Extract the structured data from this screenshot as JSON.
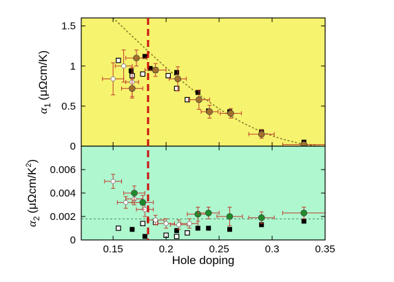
{
  "chart_data": [
    {
      "type": "scatter",
      "panel": "top",
      "ylabel_main": "α",
      "ylabel_sub": "1",
      "ylabel_unit": "(μΩcm/K)",
      "xlim": [
        0.12,
        0.35
      ],
      "ylim": [
        0,
        1.6
      ],
      "yticks": [
        "0",
        "0.5",
        "1",
        "1.5"
      ],
      "yticks_values": [
        0,
        0.5,
        1,
        1.5
      ],
      "background": "#f6f36e",
      "series": [
        {
          "marker": "filled-square",
          "color": "#000000",
          "points": [
            {
              "x": 0.167,
              "y": 0.94
            },
            {
              "x": 0.18,
              "y": 1.12
            },
            {
              "x": 0.185,
              "y": 0.97
            },
            {
              "x": 0.21,
              "y": 0.92
            },
            {
              "x": 0.23,
              "y": 0.67
            },
            {
              "x": 0.24,
              "y": 0.44
            },
            {
              "x": 0.26,
              "y": 0.43
            },
            {
              "x": 0.29,
              "y": 0.18
            },
            {
              "x": 0.33,
              "y": 0.05
            }
          ]
        },
        {
          "marker": "open-square",
          "color": "#000000",
          "points": [
            {
              "x": 0.155,
              "y": 1.07
            },
            {
              "x": 0.168,
              "y": 0.88
            },
            {
              "x": 0.178,
              "y": 0.9
            },
            {
              "x": 0.19,
              "y": 0.95
            },
            {
              "x": 0.202,
              "y": 0.88
            },
            {
              "x": 0.21,
              "y": 0.72
            },
            {
              "x": 0.22,
              "y": 0.58
            }
          ]
        },
        {
          "marker": "open-circle-errorbar",
          "color": "#ffffff",
          "points": [
            {
              "x": 0.15,
              "y": 0.84,
              "xerr": 0.01,
              "yerr": 0.2
            },
            {
              "x": 0.16,
              "y": 1.0,
              "xerr": 0.008,
              "yerr": 0.2
            },
            {
              "x": 0.168,
              "y": 0.8,
              "xerr": 0.006,
              "yerr": 0.18
            }
          ]
        },
        {
          "marker": "filled-circle-errorbar",
          "color": "#a2702d",
          "points": [
            {
              "x": 0.168,
              "y": 0.72,
              "xerr": 0.01,
              "yerr": 0.12
            },
            {
              "x": 0.172,
              "y": 1.1,
              "xerr": 0.01,
              "yerr": 0.1
            },
            {
              "x": 0.19,
              "y": 0.95,
              "xerr": 0.01,
              "yerr": 0.08
            },
            {
              "x": 0.211,
              "y": 0.84,
              "xerr": 0.008,
              "yerr": 0.15
            },
            {
              "x": 0.231,
              "y": 0.58,
              "xerr": 0.01,
              "yerr": 0.12
            },
            {
              "x": 0.241,
              "y": 0.43,
              "xerr": 0.008,
              "yerr": 0.08
            },
            {
              "x": 0.261,
              "y": 0.41,
              "xerr": 0.01,
              "yerr": 0.06
            },
            {
              "x": 0.29,
              "y": 0.15,
              "xerr": 0.012,
              "yerr": 0.05
            },
            {
              "x": 0.33,
              "y": 0.02,
              "xerr": 0.02,
              "yerr": 0.03
            }
          ]
        }
      ],
      "dotted_curve": {
        "color": "#8a7a2a",
        "points": [
          [
            0.15,
            1.63
          ],
          [
            0.18,
            1.22
          ],
          [
            0.21,
            0.86
          ],
          [
            0.24,
            0.55
          ],
          [
            0.27,
            0.3
          ],
          [
            0.3,
            0.12
          ],
          [
            0.33,
            0.02
          ],
          [
            0.345,
            0.0
          ]
        ]
      }
    },
    {
      "type": "scatter",
      "panel": "bottom",
      "xlabel": "Hole doping",
      "ylabel_main": "α",
      "ylabel_sub": "2",
      "ylabel_unit": "(μΩcm/K",
      "ylabel_unit_sup": "2",
      "ylabel_unit_close": ")",
      "xlim": [
        0.12,
        0.35
      ],
      "ylim": [
        0,
        0.008
      ],
      "xticks": [
        "0.15",
        "0.2",
        "0.25",
        "0.3",
        "0.35"
      ],
      "xticks_values": [
        0.15,
        0.2,
        0.25,
        0.3,
        0.35
      ],
      "yticks": [
        "0",
        "0.002",
        "0.004",
        "0.006"
      ],
      "yticks_values": [
        0,
        0.002,
        0.004,
        0.006
      ],
      "background": "#aef7cf",
      "reference_line_y": 0.0018,
      "series": [
        {
          "marker": "filled-square",
          "color": "#000000",
          "points": [
            {
              "x": 0.168,
              "y": 0.0009
            },
            {
              "x": 0.18,
              "y": 0.0003
            },
            {
              "x": 0.21,
              "y": 0.0008
            },
            {
              "x": 0.23,
              "y": 0.001
            },
            {
              "x": 0.24,
              "y": 0.001
            },
            {
              "x": 0.26,
              "y": 0.0009
            },
            {
              "x": 0.29,
              "y": 0.0013
            },
            {
              "x": 0.33,
              "y": 0.0016
            }
          ]
        },
        {
          "marker": "open-square",
          "color": "#000000",
          "points": [
            {
              "x": 0.155,
              "y": 0.001
            },
            {
              "x": 0.178,
              "y": 0.0014
            },
            {
              "x": 0.19,
              "y": 0.0015
            },
            {
              "x": 0.2,
              "y": 0.0004
            },
            {
              "x": 0.21,
              "y": 0.0003
            },
            {
              "x": 0.22,
              "y": 0.0006
            }
          ]
        },
        {
          "marker": "open-circle-errorbar",
          "color": "#ffffff",
          "points": [
            {
              "x": 0.15,
              "y": 0.005,
              "xerr": 0.008,
              "yerr": 0.0006
            },
            {
              "x": 0.162,
              "y": 0.0032,
              "xerr": 0.008,
              "yerr": 0.0005
            },
            {
              "x": 0.17,
              "y": 0.0035,
              "xerr": 0.008,
              "yerr": 0.0005
            },
            {
              "x": 0.18,
              "y": 0.0026,
              "xerr": 0.008,
              "yerr": 0.0006
            },
            {
              "x": 0.19,
              "y": 0.0017,
              "xerr": 0.008,
              "yerr": 0.0004
            },
            {
              "x": 0.2,
              "y": 0.0014,
              "xerr": 0.008,
              "yerr": 0.0004
            },
            {
              "x": 0.212,
              "y": 0.0013,
              "xerr": 0.008,
              "yerr": 0.0004
            },
            {
              "x": 0.222,
              "y": 0.0014,
              "xerr": 0.008,
              "yerr": 0.0004
            }
          ]
        },
        {
          "marker": "filled-circle-errorbar",
          "color": "#1f8a2c",
          "points": [
            {
              "x": 0.17,
              "y": 0.004,
              "xerr": 0.01,
              "yerr": 0.0006
            },
            {
              "x": 0.178,
              "y": 0.0032,
              "xerr": 0.01,
              "yerr": 0.0006
            },
            {
              "x": 0.23,
              "y": 0.0022,
              "xerr": 0.01,
              "yerr": 0.0006
            },
            {
              "x": 0.24,
              "y": 0.0023,
              "xerr": 0.01,
              "yerr": 0.0005
            },
            {
              "x": 0.26,
              "y": 0.002,
              "xerr": 0.012,
              "yerr": 0.0008
            },
            {
              "x": 0.29,
              "y": 0.0019,
              "xerr": 0.012,
              "yerr": 0.0005
            },
            {
              "x": 0.33,
              "y": 0.0023,
              "xerr": 0.02,
              "yerr": 0.0005
            }
          ]
        }
      ]
    }
  ],
  "vertical_marker": {
    "x": 0.183,
    "color": "#cc1111"
  }
}
